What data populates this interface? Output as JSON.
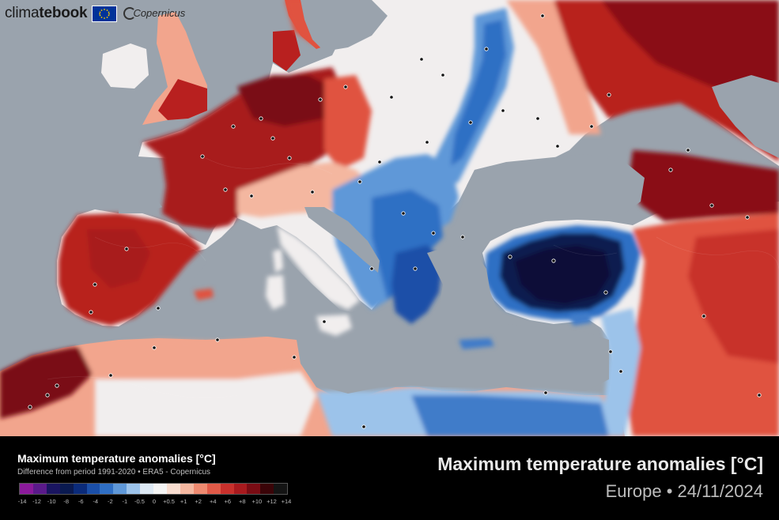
{
  "branding": {
    "logo_prefix": "clima",
    "logo_bold": "tebook",
    "copernicus": "Copernicus",
    "eu_flag_icon": "eu-flag-icon"
  },
  "legend": {
    "title": "Maximum temperature anomalies [°C]",
    "subtitle": "Difference from period 1991-2020 • ERA5 - Copernicus",
    "ticks": [
      "-14",
      "-12",
      "-10",
      "-8",
      "-6",
      "-4",
      "-2",
      "-1",
      "-0.5",
      "0",
      "+0.5",
      "+1",
      "+2",
      "+4",
      "+6",
      "+8",
      "+10",
      "+12",
      "+14"
    ],
    "colors": [
      "#8a1a9a",
      "#5a1a8a",
      "#1a1560",
      "#0a1a50",
      "#0b2b7a",
      "#1b4fa8",
      "#2f6fc4",
      "#5f98d8",
      "#9cc3ea",
      "#dde9f4",
      "#f4f4f4",
      "#f8ddd0",
      "#f4b7a0",
      "#ee8a70",
      "#e05a48",
      "#c8302c",
      "#a81a1e",
      "#7a0c14",
      "#3a0408",
      "#141414"
    ]
  },
  "header": {
    "title": "Maximum temperature anomalies [°C]",
    "region": "Europe",
    "separator": "•",
    "date": "24/11/2024"
  },
  "map": {
    "sea_color": "#9aa3ad",
    "land_colors": {
      "very_hot": "#8a0e14",
      "hot": "#b8201f",
      "warm": "#e0523f",
      "mild": "#f2a58d",
      "neutral": "#f1eeee",
      "cool": "#9cc3ea",
      "cold": "#3f7cc9",
      "very_cold": "#163a88",
      "extreme_cold": "#0a0f38"
    }
  }
}
